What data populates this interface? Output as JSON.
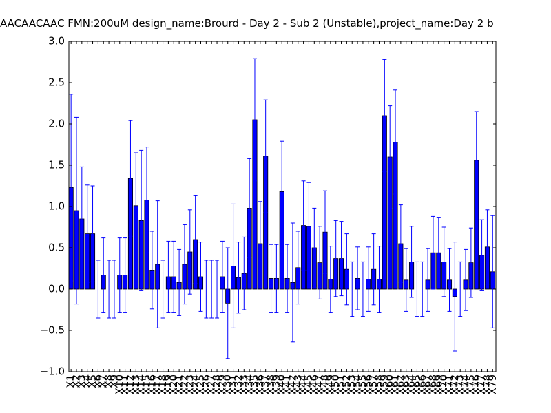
{
  "chart_data": {
    "type": "bar",
    "title": "AACAACAAC  FMN:200uM  design_name:Brourd - Day 2 - Sub 2 (Unstable),project_name:Day 2 b",
    "categories": [
      "X1",
      "X2",
      "X3",
      "X4",
      "X5",
      "X6",
      "X7",
      "X8",
      "X9",
      "X10",
      "X11",
      "X12",
      "X13",
      "X14",
      "X15",
      "X16",
      "X17",
      "X18",
      "X19",
      "X20",
      "X21",
      "X22",
      "X23",
      "X24",
      "X25",
      "X26",
      "X27",
      "X28",
      "X29",
      "X30",
      "X31",
      "X32",
      "X33",
      "X34",
      "X35",
      "X36",
      "X37",
      "X38",
      "X39",
      "X40",
      "X41",
      "X42",
      "X43",
      "X44",
      "X45",
      "X46",
      "X47",
      "X48",
      "X49",
      "X50",
      "X51",
      "X52",
      "X53",
      "X54",
      "X55",
      "X56",
      "X57",
      "X58",
      "X59",
      "X60",
      "X61",
      "X62",
      "X63",
      "X64",
      "X65",
      "X66",
      "X67",
      "X68",
      "X69",
      "X70",
      "X71",
      "X72",
      "X73",
      "X74",
      "X75",
      "X76",
      "X77",
      "X78",
      "X79"
    ],
    "values": [
      1.23,
      0.95,
      0.85,
      0.67,
      0.67,
      0,
      0.17,
      0,
      0,
      0.17,
      0.17,
      1.34,
      1.01,
      0.83,
      1.08,
      0.23,
      0.3,
      0,
      0.15,
      0.15,
      0.08,
      0.3,
      0.45,
      0.6,
      0.15,
      0,
      0,
      0,
      0.15,
      -0.17,
      0.28,
      0.14,
      0.19,
      0.98,
      2.05,
      0.55,
      1.61,
      0.13,
      0.13,
      1.18,
      0.13,
      0.08,
      0.26,
      0.77,
      0.76,
      0.5,
      0.32,
      0.69,
      0.12,
      0.37,
      0.37,
      0.24,
      0,
      0.13,
      0,
      0.12,
      0.24,
      0.12,
      2.1,
      1.6,
      1.78,
      0.55,
      0.11,
      0.33,
      0,
      0,
      0.11,
      0.44,
      0.44,
      0.33,
      0.11,
      -0.09,
      0,
      0.11,
      0.32,
      1.56,
      0.41,
      0.51,
      0.21
    ],
    "errors": [
      1.13,
      1.13,
      0.63,
      0.59,
      0.58,
      0.35,
      0.45,
      0.35,
      0.35,
      0.45,
      0.45,
      0.7,
      0.64,
      0.85,
      0.64,
      0.47,
      0.77,
      0.35,
      0.43,
      0.43,
      0.4,
      0.48,
      0.51,
      0.53,
      0.42,
      0.35,
      0.35,
      0.35,
      0.43,
      0.67,
      0.75,
      0.43,
      0.44,
      0.6,
      0.74,
      0.51,
      0.68,
      0.41,
      0.41,
      0.61,
      0.41,
      0.72,
      0.44,
      0.54,
      0.53,
      0.48,
      0.44,
      0.5,
      0.4,
      0.46,
      0.45,
      0.43,
      0.33,
      0.38,
      0.33,
      0.39,
      0.43,
      0.4,
      0.68,
      0.62,
      0.63,
      0.47,
      0.38,
      0.43,
      0.33,
      0.33,
      0.38,
      0.44,
      0.43,
      0.42,
      0.38,
      0.66,
      0.33,
      0.37,
      0.42,
      0.59,
      0.43,
      0.45,
      0.68
    ],
    "color": "#0000ff",
    "ylim": [
      -1,
      3
    ],
    "yticks": [
      {
        "value": -1,
        "label": "−1.0"
      },
      {
        "value": -0.5,
        "label": "−0.5"
      },
      {
        "value": 0,
        "label": "0.0"
      },
      {
        "value": 0.5,
        "label": "0.5"
      },
      {
        "value": 1,
        "label": "1.0"
      },
      {
        "value": 1.5,
        "label": "1.5"
      },
      {
        "value": 2,
        "label": "2.0"
      },
      {
        "value": 2.5,
        "label": "2.5"
      },
      {
        "value": 3,
        "label": "3.0"
      }
    ]
  }
}
